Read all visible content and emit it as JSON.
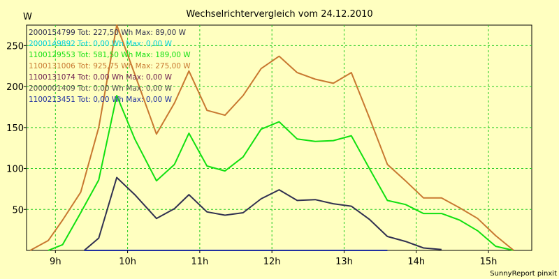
{
  "chart_data": {
    "type": "line",
    "title": "Wechselrichtervergleich vom 24.12.2010",
    "ylabel": "W",
    "xlabel": "",
    "xlim": [
      8.6,
      15.6
    ],
    "ylim": [
      0,
      275
    ],
    "x_ticks": [
      9,
      10,
      11,
      12,
      13,
      14,
      15
    ],
    "x_tick_labels": [
      "9h",
      "10h",
      "11h",
      "12h",
      "13h",
      "14h",
      "15h"
    ],
    "y_ticks": [
      50,
      100,
      150,
      200,
      250
    ],
    "y_tick_labels": [
      "50",
      "100",
      "150",
      "200",
      "250"
    ],
    "grid": true,
    "legend_position": "top-left",
    "footer": "SunnyReport pinxit",
    "series": [
      {
        "name": "2000154799 Tot: 227,50 Wh Max: 89,00 W",
        "color": "#303050",
        "x": [
          9.4,
          9.6,
          9.85,
          10.1,
          10.4,
          10.65,
          10.85,
          11.1,
          11.35,
          11.6,
          11.85,
          12.1,
          12.35,
          12.6,
          12.85,
          13.1,
          13.35,
          13.6,
          13.85,
          14.1,
          14.35
        ],
        "y": [
          0,
          15,
          89,
          68,
          39,
          51,
          68,
          47,
          43,
          46,
          63,
          74,
          61,
          62,
          57,
          54,
          38,
          17,
          11,
          3,
          1
        ]
      },
      {
        "name": "2000149892 Tot: 0,00 Wh Max: 0,00 W",
        "color": "#00d0e0",
        "x": [],
        "y": []
      },
      {
        "name": "1100129553 Tot: 581,50 Wh Max: 189,00 W",
        "color": "#10e010",
        "x": [
          8.9,
          9.1,
          9.35,
          9.6,
          9.85,
          10.1,
          10.4,
          10.65,
          10.85,
          11.1,
          11.35,
          11.6,
          11.85,
          12.1,
          12.35,
          12.6,
          12.85,
          13.1,
          13.35,
          13.6,
          13.85,
          14.1,
          14.35,
          14.6,
          14.85,
          15.1,
          15.35
        ],
        "y": [
          0,
          7,
          46,
          86,
          189,
          136,
          85,
          105,
          143,
          103,
          97,
          114,
          148,
          157,
          136,
          133,
          134,
          140,
          100,
          61,
          56,
          45,
          45,
          37,
          24,
          5,
          0
        ]
      },
      {
        "name": "1100131006 Tot: 925,75 Wh Max: 275,00 W",
        "color": "#c87830",
        "x": [
          8.65,
          8.9,
          9.1,
          9.35,
          9.6,
          9.85,
          10.1,
          10.4,
          10.65,
          10.85,
          11.1,
          11.35,
          11.6,
          11.85,
          12.1,
          12.35,
          12.6,
          12.85,
          13.1,
          13.35,
          13.6,
          13.85,
          14.1,
          14.35,
          14.6,
          14.85,
          15.1,
          15.35
        ],
        "y": [
          0,
          12,
          37,
          71,
          150,
          275,
          215,
          142,
          180,
          219,
          171,
          165,
          189,
          222,
          237,
          217,
          209,
          204,
          217,
          162,
          105,
          85,
          64,
          64,
          52,
          39,
          18,
          0
        ]
      },
      {
        "name": "1100131074 Tot: 0,00 Wh Max: 0,00 W",
        "color": "#702050",
        "x": [],
        "y": []
      },
      {
        "name": "2000001409 Tot: 0,00 Wh Max: 0,00 W",
        "color": "#505050",
        "x": [],
        "y": []
      },
      {
        "name": "1100213451 Tot: 0,00 Wh Max: 0,00 W",
        "color": "#2030a0",
        "x": [
          9.4,
          13.6
        ],
        "y": [
          0,
          0
        ]
      }
    ]
  }
}
